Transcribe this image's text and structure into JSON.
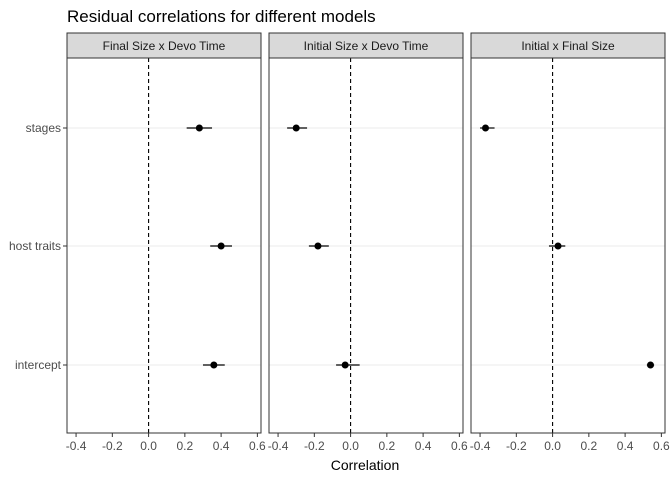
{
  "chart_data": {
    "type": "scatter",
    "title": "Residual correlations for different models",
    "xlabel": "Correlation",
    "ylabel": "",
    "xlim": [
      -0.45,
      0.62
    ],
    "xticks": [
      -0.4,
      -0.2,
      0.0,
      0.2,
      0.4,
      0.6
    ],
    "xtick_labels": [
      "-0.4",
      "-0.2",
      "0.0",
      "0.2",
      "0.4",
      "0.6"
    ],
    "categories": [
      "stages",
      "host traits",
      "intercept"
    ],
    "reference_line_x": 0,
    "grid": true,
    "colors": {
      "point": "#000000",
      "panel_border": "#333333",
      "strip_fill": "#d9d9d9",
      "grid": "#ebebeb"
    },
    "panels": [
      {
        "title": "Final Size x Devo Time",
        "points": [
          {
            "category": "stages",
            "x": 0.28,
            "lo": 0.21,
            "hi": 0.35
          },
          {
            "category": "host traits",
            "x": 0.4,
            "lo": 0.34,
            "hi": 0.46
          },
          {
            "category": "intercept",
            "x": 0.36,
            "lo": 0.3,
            "hi": 0.42
          }
        ]
      },
      {
        "title": "Initial Size x Devo Time",
        "points": [
          {
            "category": "stages",
            "x": -0.3,
            "lo": -0.35,
            "hi": -0.24
          },
          {
            "category": "host traits",
            "x": -0.18,
            "lo": -0.23,
            "hi": -0.12
          },
          {
            "category": "intercept",
            "x": -0.03,
            "lo": -0.08,
            "hi": 0.05
          }
        ]
      },
      {
        "title": "Initial x Final Size",
        "points": [
          {
            "category": "stages",
            "x": -0.37,
            "lo": -0.4,
            "hi": -0.32
          },
          {
            "category": "host traits",
            "x": 0.03,
            "lo": -0.02,
            "hi": 0.07
          },
          {
            "category": "intercept",
            "x": 0.54,
            "lo": 0.52,
            "hi": 0.56
          }
        ]
      }
    ]
  }
}
